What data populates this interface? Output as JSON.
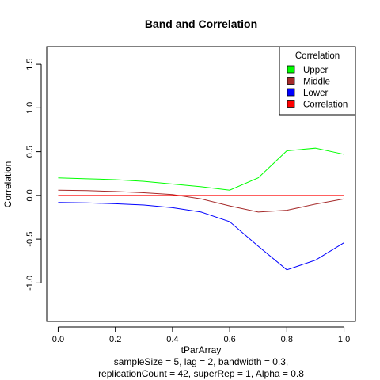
{
  "chart_data": {
    "type": "line",
    "title": "Band and Correlation",
    "xlabel": "tParArray",
    "ylabel": "Correlation",
    "subtitle_lines": [
      "sampleSize = 5, lag = 2, bandwidth = 0.3,",
      "replicationCount = 42, superRep = 1, Alpha = 0.8"
    ],
    "xlim": [
      -0.04,
      1.04
    ],
    "ylim": [
      -1.44,
      1.7
    ],
    "xticks": [
      0.0,
      0.2,
      0.4,
      0.6,
      0.8,
      1.0
    ],
    "xtick_labels": [
      "0.0",
      "0.2",
      "0.4",
      "0.6",
      "0.8",
      "1.0"
    ],
    "yticks": [
      -1.0,
      -0.5,
      0.0,
      0.5,
      1.0,
      1.5
    ],
    "ytick_labels": [
      "-1.0",
      "-0.5",
      "0.0",
      "0.5",
      "1.0",
      "1.5"
    ],
    "x": [
      0.0,
      0.1,
      0.2,
      0.3,
      0.4,
      0.5,
      0.6,
      0.7,
      0.8,
      0.9,
      1.0
    ],
    "series": [
      {
        "name": "Upper",
        "color": "#00ff00",
        "values": [
          0.2,
          0.19,
          0.18,
          0.16,
          0.13,
          0.1,
          0.06,
          0.2,
          0.51,
          0.54,
          0.47
        ]
      },
      {
        "name": "Middle",
        "color": "#a52a2a",
        "values": [
          0.06,
          0.055,
          0.045,
          0.03,
          0.01,
          -0.04,
          -0.12,
          -0.19,
          -0.17,
          -0.1,
          -0.04
        ]
      },
      {
        "name": "Lower",
        "color": "#0000ff",
        "values": [
          -0.08,
          -0.085,
          -0.095,
          -0.11,
          -0.14,
          -0.19,
          -0.3,
          -0.58,
          -0.85,
          -0.74,
          -0.54
        ]
      },
      {
        "name": "Correlation",
        "color": "#ff0000",
        "values": [
          0,
          0,
          0,
          0,
          0,
          0,
          0,
          0,
          0,
          0,
          0
        ]
      }
    ],
    "legend": {
      "title": "Correlation",
      "position": "top-right",
      "entries": [
        "Upper",
        "Middle",
        "Lower",
        "Correlation"
      ]
    },
    "grid": false
  }
}
